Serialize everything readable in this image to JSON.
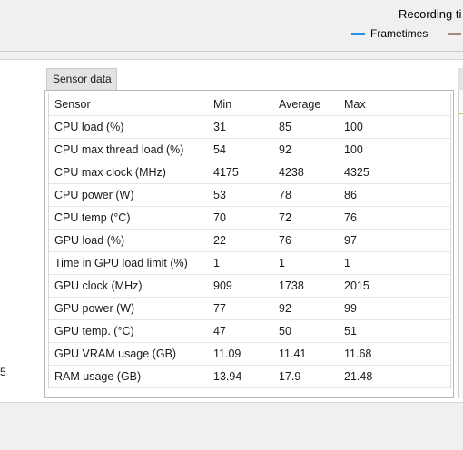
{
  "header": {
    "recording_label": "Recording ti",
    "legend": [
      {
        "label": "Frametimes",
        "color": "#2b8fe0"
      },
      {
        "label": "",
        "color": "#a88b76"
      }
    ]
  },
  "left_panel": {
    "partial_value": "5"
  },
  "sensor_panel": {
    "tab_label": "Sensor data",
    "columns": [
      "Sensor",
      "Min",
      "Average",
      "Max"
    ],
    "rows": [
      {
        "sensor": "CPU load (%)",
        "min": "31",
        "avg": "85",
        "max": "100"
      },
      {
        "sensor": "CPU max thread load (%)",
        "min": "54",
        "avg": "92",
        "max": "100"
      },
      {
        "sensor": "CPU max clock (MHz)",
        "min": "4175",
        "avg": "4238",
        "max": "4325"
      },
      {
        "sensor": "CPU power (W)",
        "min": "53",
        "avg": "78",
        "max": "86"
      },
      {
        "sensor": "CPU temp (°C)",
        "min": "70",
        "avg": "72",
        "max": "76"
      },
      {
        "sensor": "GPU load (%)",
        "min": "22",
        "avg": "76",
        "max": "97"
      },
      {
        "sensor": "Time in GPU load limit (%)",
        "min": "1",
        "avg": "1",
        "max": "1"
      },
      {
        "sensor": "GPU clock (MHz)",
        "min": "909",
        "avg": "1738",
        "max": "2015"
      },
      {
        "sensor": "GPU power (W)",
        "min": "77",
        "avg": "92",
        "max": "99"
      },
      {
        "sensor": "GPU temp. (°C)",
        "min": "47",
        "avg": "50",
        "max": "51"
      },
      {
        "sensor": "GPU VRAM usage (GB)",
        "min": "11.09",
        "avg": "11.41",
        "max": "11.68"
      },
      {
        "sensor": "RAM usage (GB)",
        "min": "13.94",
        "avg": "17.9",
        "max": "21.48"
      }
    ]
  }
}
